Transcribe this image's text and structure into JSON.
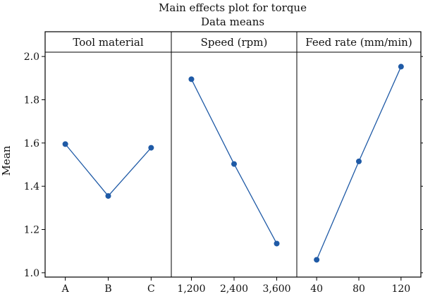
{
  "chart_data": {
    "type": "line",
    "title": "Main effects plot for torque",
    "subtitle": "Data means",
    "ylabel": "Mean",
    "ylim": [
      0.98,
      2.02
    ],
    "yticks": [
      "1.0",
      "1.2",
      "1.4",
      "1.6",
      "1.8",
      "2.0"
    ],
    "color": "#1f5aa6",
    "panels": [
      {
        "label": "Tool material",
        "categories": [
          "A",
          "B",
          "C"
        ],
        "values": [
          1.595,
          1.355,
          1.578
        ]
      },
      {
        "label": "Speed (rpm)",
        "categories": [
          "1,200",
          "2,400",
          "3,600"
        ],
        "values": [
          1.895,
          1.503,
          1.135
        ]
      },
      {
        "label": "Feed rate (mm/min)",
        "categories": [
          "40",
          "80",
          "120"
        ],
        "values": [
          1.06,
          1.515,
          1.953
        ]
      }
    ]
  }
}
